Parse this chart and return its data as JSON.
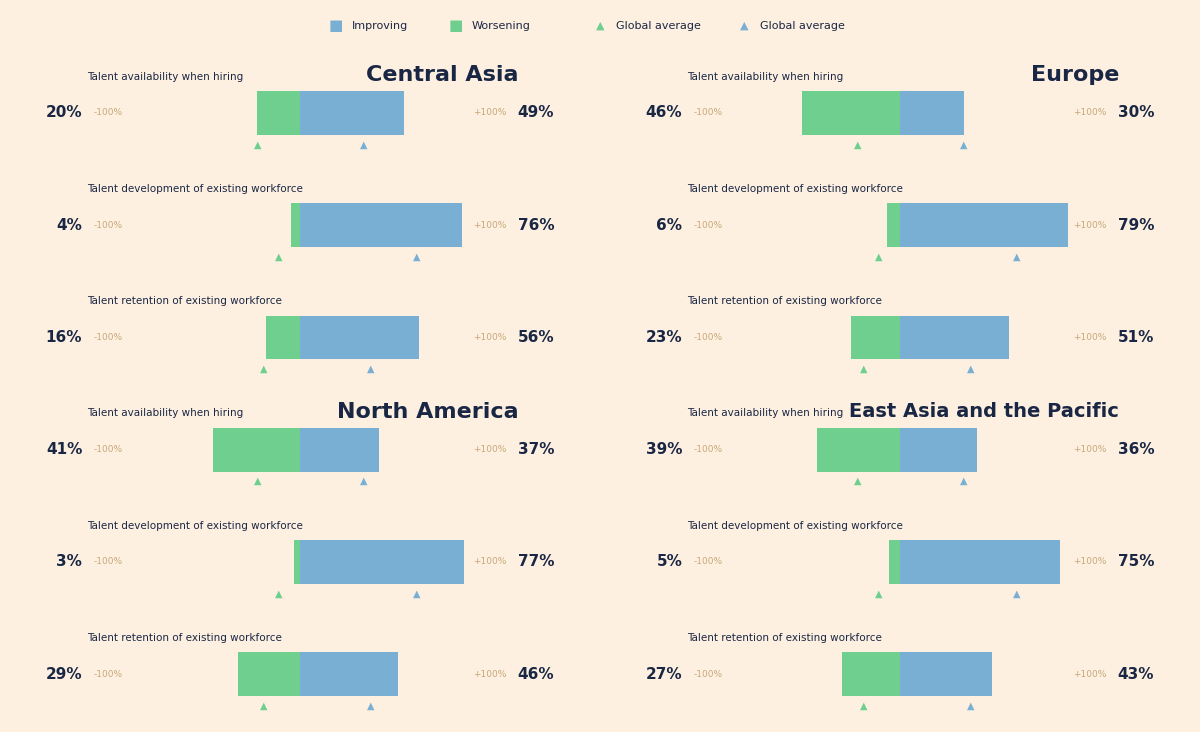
{
  "background_color": "#fdf0e0",
  "bar_bg_color": "#f5ddb8",
  "green_color": "#6ecf8e",
  "blue_color": "#7aafd4",
  "text_color": "#1a2744",
  "label_color": "#c8a87a",
  "charts": [
    {
      "region": "Central Asia",
      "region_fontsize": 16,
      "rows": [
        {
          "label": "Talent availability when hiring",
          "worsening": 20,
          "improving": 49,
          "green_avg": -20,
          "blue_avg": 30
        },
        {
          "label": "Talent development of existing workforce",
          "worsening": 4,
          "improving": 76,
          "green_avg": -10,
          "blue_avg": 55
        },
        {
          "label": "Talent retention of existing workforce",
          "worsening": 16,
          "improving": 56,
          "green_avg": -17,
          "blue_avg": 33
        }
      ]
    },
    {
      "region": "Europe",
      "region_fontsize": 16,
      "rows": [
        {
          "label": "Talent availability when hiring",
          "worsening": 46,
          "improving": 30,
          "green_avg": -20,
          "blue_avg": 30
        },
        {
          "label": "Talent development of existing workforce",
          "worsening": 6,
          "improving": 79,
          "green_avg": -10,
          "blue_avg": 55
        },
        {
          "label": "Talent retention of existing workforce",
          "worsening": 23,
          "improving": 51,
          "green_avg": -17,
          "blue_avg": 33
        }
      ]
    },
    {
      "region": "North America",
      "region_fontsize": 16,
      "rows": [
        {
          "label": "Talent availability when hiring",
          "worsening": 41,
          "improving": 37,
          "green_avg": -20,
          "blue_avg": 30
        },
        {
          "label": "Talent development of existing workforce",
          "worsening": 3,
          "improving": 77,
          "green_avg": -10,
          "blue_avg": 55
        },
        {
          "label": "Talent retention of existing workforce",
          "worsening": 29,
          "improving": 46,
          "green_avg": -17,
          "blue_avg": 33
        }
      ]
    },
    {
      "region": "East Asia and the Pacific",
      "region_fontsize": 14,
      "rows": [
        {
          "label": "Talent availability when hiring",
          "worsening": 39,
          "improving": 36,
          "green_avg": -20,
          "blue_avg": 30
        },
        {
          "label": "Talent development of existing workforce",
          "worsening": 5,
          "improving": 75,
          "green_avg": -10,
          "blue_avg": 55
        },
        {
          "label": "Talent retention of existing workforce",
          "worsening": 27,
          "improving": 43,
          "green_avg": -17,
          "blue_avg": 33
        }
      ]
    }
  ],
  "legend": {
    "items": [
      {
        "label": "Improving",
        "color": "#7aafd4",
        "marker": "square"
      },
      {
        "label": "Worsening",
        "color": "#6ecf8e",
        "marker": "square"
      },
      {
        "label": "Global average",
        "color": "#6ecf8e",
        "marker": "triangle"
      },
      {
        "label": "Global average",
        "color": "#7aafd4",
        "marker": "triangle"
      }
    ]
  }
}
